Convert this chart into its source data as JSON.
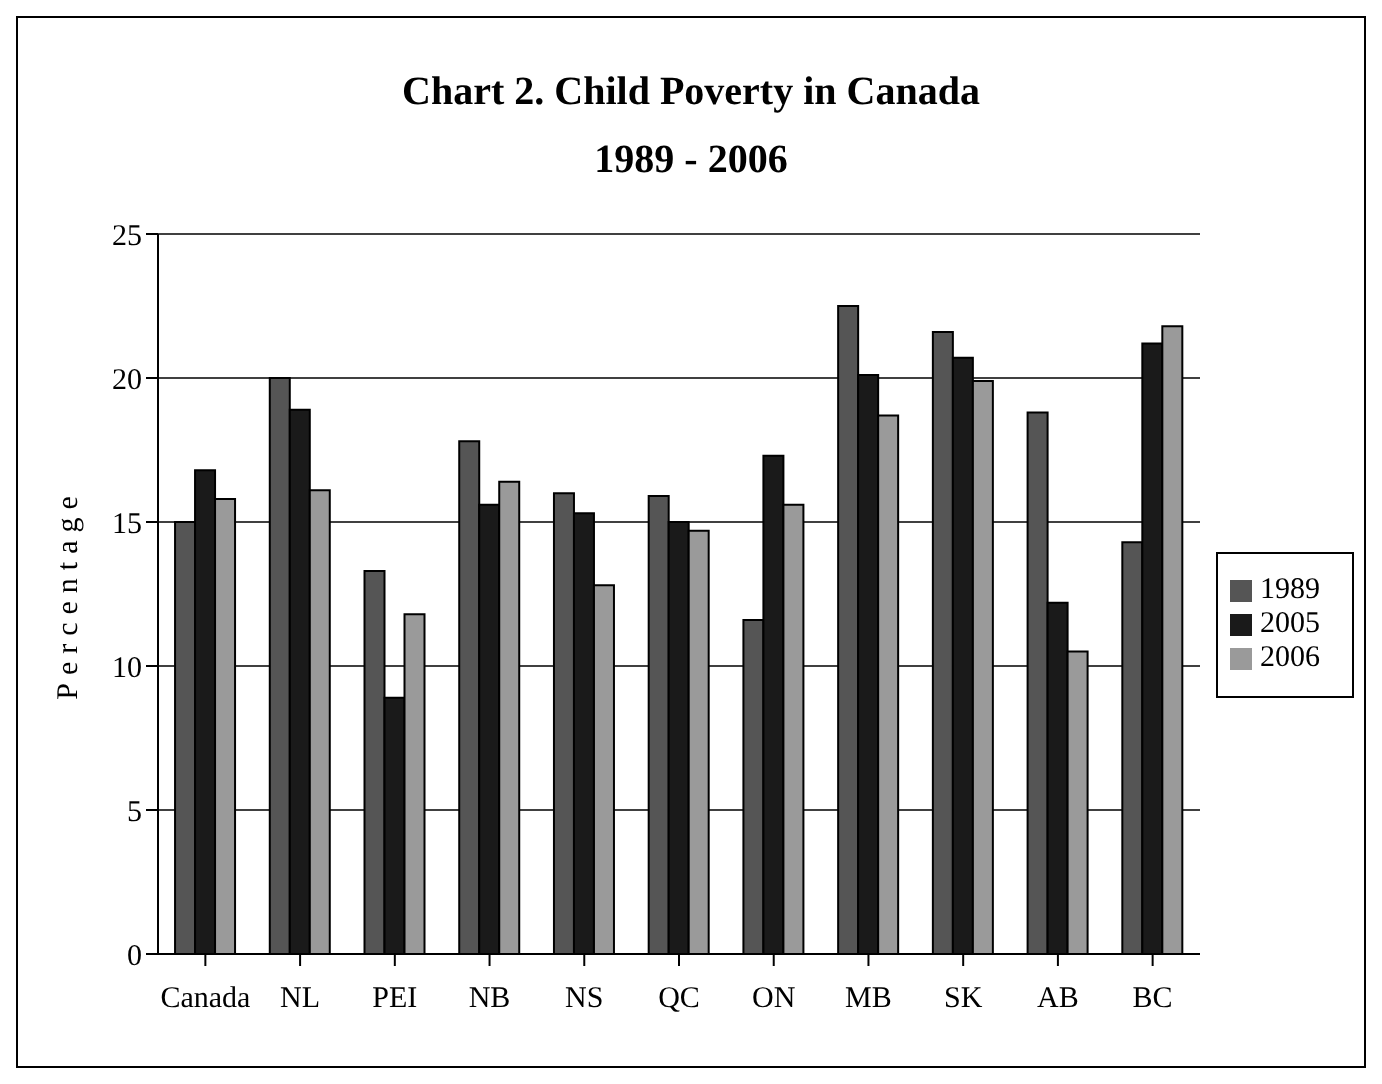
{
  "chart_data": {
    "type": "bar",
    "title": "Chart 2. Child Poverty in Canada",
    "subtitle": "1989 - 2006",
    "ylabel": "Percentage",
    "categories": [
      "Canada",
      "NL",
      "PEI",
      "NB",
      "NS",
      "QC",
      "ON",
      "MB",
      "SK",
      "AB",
      "BC"
    ],
    "series": [
      {
        "name": "1989",
        "color": "#555555",
        "values": [
          15,
          20,
          13.3,
          17.8,
          16,
          15.9,
          11.6,
          22.5,
          21.6,
          18.8,
          14.3
        ]
      },
      {
        "name": "2005",
        "color": "#1a1a1a",
        "values": [
          16.8,
          18.9,
          8.9,
          15.6,
          15.3,
          15,
          17.3,
          20.1,
          20.7,
          12.2,
          21.2
        ]
      },
      {
        "name": "2006",
        "color": "#9a9a9a",
        "values": [
          15.8,
          16.1,
          11.8,
          16.4,
          12.8,
          14.7,
          15.6,
          18.7,
          19.9,
          10.5,
          21.8
        ]
      }
    ],
    "ylim": [
      0,
      25
    ],
    "yticks": [
      0,
      5,
      10,
      15,
      20,
      25
    ],
    "grid": "y",
    "legend": "right"
  }
}
